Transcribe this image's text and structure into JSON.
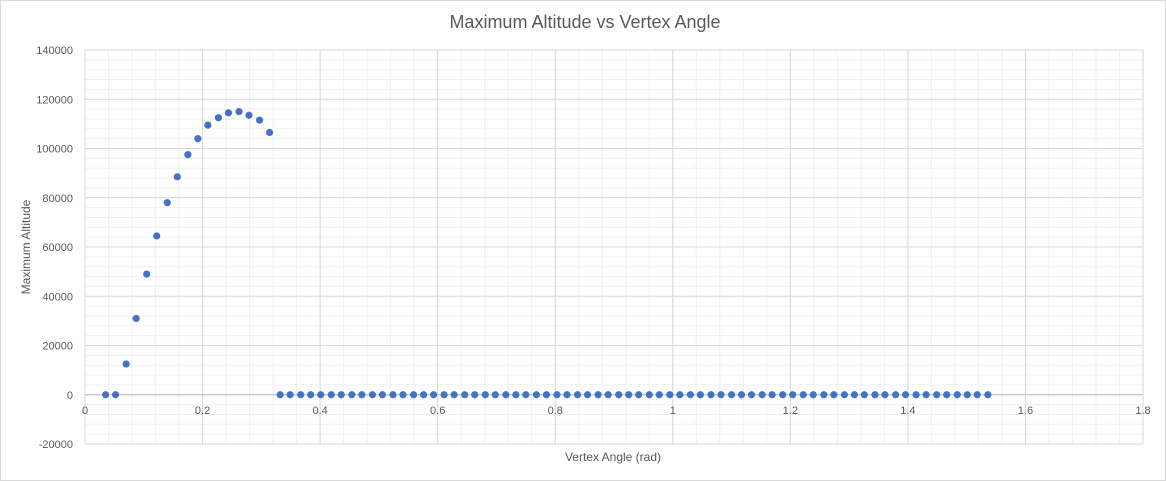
{
  "chart_data": {
    "type": "scatter",
    "title": "Maximum Altitude vs Vertex Angle",
    "xlabel": "Vertex  Angle (rad)",
    "ylabel": "Maximum Altitude",
    "xlim": [
      0,
      1.8
    ],
    "ylim": [
      -20000,
      140000
    ],
    "x_ticks": [
      "0",
      "0.2",
      "0.4",
      "0.6",
      "0.8",
      "1",
      "1.2",
      "1.4",
      "1.6",
      "1.8"
    ],
    "y_ticks": [
      "140000",
      "120000",
      "100000",
      "80000",
      "60000",
      "40000",
      "20000",
      "0",
      "-20000"
    ],
    "x_tick_values": [
      0,
      0.2,
      0.4,
      0.6,
      0.8,
      1.0,
      1.2,
      1.4,
      1.6,
      1.8
    ],
    "y_tick_values": [
      140000,
      120000,
      100000,
      80000,
      60000,
      40000,
      20000,
      0,
      -20000
    ],
    "grid": true,
    "minor_grid": true,
    "legend": "none",
    "marker_color": "#4472c4",
    "series": [
      {
        "points": [
          [
            0.035,
            0
          ],
          [
            0.052,
            0
          ],
          [
            0.07,
            12500
          ],
          [
            0.087,
            31000
          ],
          [
            0.105,
            49000
          ],
          [
            0.122,
            64500
          ],
          [
            0.14,
            78000
          ],
          [
            0.157,
            88500
          ],
          [
            0.175,
            97500
          ],
          [
            0.192,
            104000
          ],
          [
            0.209,
            109500
          ],
          [
            0.227,
            112500
          ],
          [
            0.244,
            114500
          ],
          [
            0.262,
            115000
          ],
          [
            0.279,
            113500
          ],
          [
            0.297,
            111500
          ],
          [
            0.314,
            106500
          ],
          [
            0.332,
            0
          ],
          [
            0.349,
            0
          ],
          [
            0.367,
            0
          ],
          [
            0.384,
            0
          ],
          [
            0.401,
            0
          ],
          [
            0.419,
            0
          ],
          [
            0.436,
            0
          ],
          [
            0.454,
            0
          ],
          [
            0.471,
            0
          ],
          [
            0.489,
            0
          ],
          [
            0.506,
            0
          ],
          [
            0.524,
            0
          ],
          [
            0.541,
            0
          ],
          [
            0.559,
            0
          ],
          [
            0.576,
            0
          ],
          [
            0.593,
            0
          ],
          [
            0.611,
            0
          ],
          [
            0.628,
            0
          ],
          [
            0.646,
            0
          ],
          [
            0.663,
            0
          ],
          [
            0.681,
            0
          ],
          [
            0.698,
            0
          ],
          [
            0.716,
            0
          ],
          [
            0.733,
            0
          ],
          [
            0.75,
            0
          ],
          [
            0.768,
            0
          ],
          [
            0.785,
            0
          ],
          [
            0.803,
            0
          ],
          [
            0.82,
            0
          ],
          [
            0.838,
            0
          ],
          [
            0.855,
            0
          ],
          [
            0.873,
            0
          ],
          [
            0.89,
            0
          ],
          [
            0.908,
            0
          ],
          [
            0.925,
            0
          ],
          [
            0.942,
            0
          ],
          [
            0.96,
            0
          ],
          [
            0.977,
            0
          ],
          [
            0.995,
            0
          ],
          [
            1.012,
            0
          ],
          [
            1.03,
            0
          ],
          [
            1.047,
            0
          ],
          [
            1.065,
            0
          ],
          [
            1.082,
            0
          ],
          [
            1.1,
            0
          ],
          [
            1.117,
            0
          ],
          [
            1.134,
            0
          ],
          [
            1.152,
            0
          ],
          [
            1.169,
            0
          ],
          [
            1.187,
            0
          ],
          [
            1.204,
            0
          ],
          [
            1.222,
            0
          ],
          [
            1.239,
            0
          ],
          [
            1.257,
            0
          ],
          [
            1.274,
            0
          ],
          [
            1.292,
            0
          ],
          [
            1.309,
            0
          ],
          [
            1.326,
            0
          ],
          [
            1.344,
            0
          ],
          [
            1.361,
            0
          ],
          [
            1.379,
            0
          ],
          [
            1.396,
            0
          ],
          [
            1.414,
            0
          ],
          [
            1.431,
            0
          ],
          [
            1.449,
            0
          ],
          [
            1.466,
            0
          ],
          [
            1.484,
            0
          ],
          [
            1.501,
            0
          ],
          [
            1.518,
            0
          ],
          [
            1.536,
            0
          ]
        ]
      }
    ]
  }
}
